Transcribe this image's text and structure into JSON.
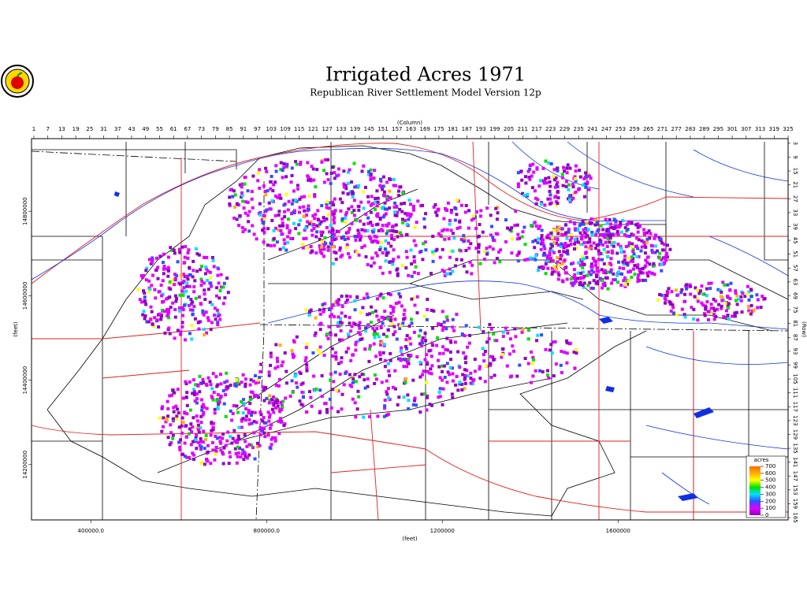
{
  "title": "Irrigated Acres 1971",
  "subtitle": "Republican River Settlement Model Version 12p",
  "map": {
    "column_axis": {
      "label": "(Column)",
      "lim": [
        0,
        325
      ],
      "ticks": [
        1,
        7,
        13,
        19,
        25,
        31,
        37,
        43,
        49,
        55,
        61,
        67,
        73,
        79,
        85,
        91,
        97,
        103,
        109,
        115,
        121,
        127,
        133,
        139,
        145,
        151,
        157,
        163,
        169,
        175,
        181,
        187,
        193,
        199,
        205,
        211,
        217,
        223,
        229,
        235,
        241,
        247,
        253,
        259,
        265,
        271,
        277,
        283,
        289,
        295,
        301,
        307,
        313,
        319,
        325
      ]
    },
    "row_axis": {
      "label": "(Row)",
      "lim": [
        1,
        166
      ],
      "ticks": [
        3,
        9,
        15,
        21,
        27,
        33,
        39,
        45,
        51,
        57,
        63,
        69,
        75,
        81,
        87,
        93,
        99,
        105,
        111,
        117,
        123,
        129,
        135,
        141,
        147,
        153,
        159,
        165
      ]
    },
    "x_axis": {
      "label": "(feet)",
      "lim": [
        265000,
        1987000
      ],
      "ticks": [
        {
          "value": 400000,
          "label": "400000.0"
        },
        {
          "value": 800000,
          "label": "800000.0"
        },
        1200000,
        1600000
      ]
    },
    "y_axis": {
      "label": "(feet)",
      "lim": [
        14069000,
        14972000
      ],
      "ticks": [
        14800000,
        14600000,
        14400000,
        14200000
      ]
    }
  },
  "legend": {
    "title": "acres",
    "levels": [
      700,
      600,
      500,
      400,
      300,
      200,
      100,
      0
    ],
    "colors": [
      "#ff6a00",
      "#ffb000",
      "#ffff00",
      "#00e000",
      "#00e0ff",
      "#3050ff",
      "#e000ff",
      "#9000c0"
    ]
  }
}
